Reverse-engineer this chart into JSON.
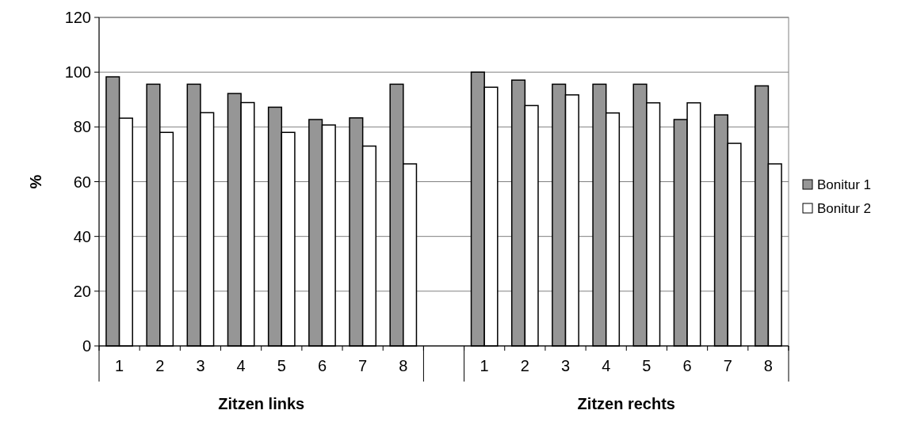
{
  "chart_data": {
    "type": "bar",
    "ylabel": "%",
    "categories": [
      "1",
      "2",
      "3",
      "4",
      "5",
      "6",
      "7",
      "8",
      null,
      "1",
      "2",
      "3",
      "4",
      "5",
      "6",
      "7",
      "8"
    ],
    "series": [
      {
        "name": "Bonitur 1",
        "color": "#969696",
        "values": [
          98.3,
          95.6,
          95.6,
          92.2,
          87.2,
          82.7,
          83.3,
          95.6,
          null,
          100,
          97.1,
          95.6,
          95.6,
          95.6,
          82.7,
          84.4,
          95
        ]
      },
      {
        "name": "Bonitur 2",
        "color": "#ffffff",
        "values": [
          83.2,
          78,
          85.2,
          88.9,
          78,
          80.7,
          73,
          66.5,
          null,
          94.5,
          87.8,
          91.7,
          85.1,
          88.8,
          88.8,
          74,
          66.5
        ]
      }
    ],
    "ylim": [
      0,
      120
    ],
    "yticks": [
      0,
      20,
      40,
      60,
      80,
      100,
      120
    ],
    "grid": "y",
    "legend": "right",
    "annotations": [
      "Zitzen links",
      "Zitzen rechts"
    ]
  }
}
